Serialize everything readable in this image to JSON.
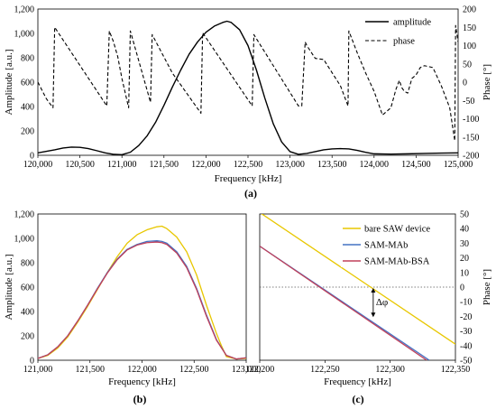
{
  "chart_data": [
    {
      "panel": "(a)",
      "type": "line",
      "xlabel": "Frequency [kHz]",
      "ylabel": "Amplitude [a.u.]",
      "y2label": "Phase [°]",
      "xlim": [
        120000,
        125000
      ],
      "ylim": [
        0,
        1200
      ],
      "y2lim": [
        -200,
        200
      ],
      "x_ticks": [
        "120,000",
        "120,500",
        "121,000",
        "121,500",
        "122,000",
        "122,500",
        "123,000",
        "123,500",
        "124,000",
        "124,500",
        "125,000"
      ],
      "y_ticks": [
        "0",
        "200",
        "400",
        "600",
        "800",
        "1,000",
        "1,200"
      ],
      "y2_ticks": [
        "-200",
        "-150",
        "-100",
        "-50",
        "0",
        "50",
        "100",
        "150",
        "200"
      ],
      "legend": "top-right",
      "series": [
        {
          "name": "amplitude",
          "axis": "left",
          "style": "solid",
          "x": [
            120000,
            120200,
            120300,
            120400,
            120500,
            120600,
            120700,
            120800,
            120900,
            121000,
            121100,
            121200,
            121300,
            121400,
            121500,
            121600,
            121700,
            121800,
            121900,
            122000,
            122100,
            122200,
            122250,
            122300,
            122400,
            122500,
            122600,
            122700,
            122800,
            122900,
            123000,
            123100,
            123200,
            123300,
            123400,
            123500,
            123600,
            123700,
            123800,
            123900,
            124000,
            124200,
            124400,
            124600,
            124800,
            125000
          ],
          "y": [
            20,
            45,
            60,
            67,
            65,
            55,
            38,
            20,
            8,
            5,
            25,
            80,
            160,
            270,
            410,
            560,
            700,
            830,
            930,
            1010,
            1060,
            1090,
            1100,
            1090,
            1030,
            900,
            700,
            470,
            260,
            110,
            30,
            8,
            15,
            30,
            45,
            52,
            55,
            52,
            40,
            25,
            12,
            10,
            12,
            15,
            18,
            20
          ]
        },
        {
          "name": "phase",
          "axis": "right",
          "style": "dashed",
          "x": [
            120000,
            120100,
            120180,
            120200,
            120820,
            120850,
            120900,
            120950,
            121000,
            121050,
            121080,
            121100,
            121340,
            121360,
            121600,
            121940,
            121960,
            122550,
            122570,
            123100,
            123140,
            123180,
            123200,
            123300,
            123400,
            123600,
            123690,
            123700,
            123800,
            123900,
            124000,
            124100,
            124200,
            124260,
            124300,
            124330,
            124360,
            124400,
            124450,
            124500,
            124550,
            124600,
            124700,
            124800,
            124900,
            124960,
            124970,
            125000
          ],
          "y": [
            0,
            -45,
            -70,
            150,
            -65,
            140,
            110,
            70,
            10,
            -40,
            -70,
            140,
            -55,
            130,
            25,
            -85,
            135,
            -65,
            130,
            -65,
            -65,
            110,
            100,
            65,
            62,
            -10,
            -65,
            140,
            80,
            25,
            -25,
            -90,
            -70,
            -20,
            5,
            -15,
            -25,
            -30,
            10,
            20,
            40,
            45,
            40,
            -10,
            -70,
            -160,
            155,
            110
          ]
        }
      ]
    },
    {
      "panel": "(b)",
      "type": "line",
      "xlabel": "Frequency [kHz]",
      "ylabel": "Amplitude [a.u.]",
      "xlim": [
        121000,
        123100
      ],
      "ylim": [
        0,
        1200
      ],
      "x_ticks": [
        "121,000",
        "121,500",
        "122,000",
        "122,500",
        "123,000"
      ],
      "y_ticks": [
        "0",
        "200",
        "400",
        "600",
        "800",
        "1,000",
        "1,200"
      ],
      "series": [
        {
          "name": "bare SAW device",
          "color": "#e8c700",
          "x": [
            121000,
            121100,
            121200,
            121300,
            121400,
            121500,
            121600,
            121700,
            121800,
            121900,
            122000,
            122100,
            122200,
            122250,
            122300,
            122400,
            122500,
            122600,
            122700,
            122800,
            122850,
            122900,
            123000,
            123100
          ],
          "y": [
            15,
            40,
            100,
            190,
            310,
            440,
            580,
            720,
            850,
            960,
            1030,
            1070,
            1095,
            1100,
            1080,
            1010,
            890,
            700,
            450,
            220,
            120,
            30,
            10,
            15
          ]
        },
        {
          "name": "SAM-MAb",
          "color": "#4472c4",
          "x": [
            121000,
            121100,
            121200,
            121300,
            121400,
            121500,
            121600,
            121700,
            121800,
            121900,
            122000,
            122100,
            122200,
            122250,
            122300,
            122400,
            122500,
            122600,
            122700,
            122800,
            122900,
            123000,
            123100
          ],
          "y": [
            15,
            45,
            110,
            200,
            320,
            450,
            590,
            720,
            830,
            910,
            950,
            975,
            980,
            975,
            960,
            890,
            770,
            590,
            370,
            170,
            40,
            10,
            20
          ]
        },
        {
          "name": "SAM-MAb-BSA",
          "color": "#c0405a",
          "x": [
            121000,
            121100,
            121200,
            121300,
            121400,
            121500,
            121600,
            121700,
            121800,
            121900,
            122000,
            122100,
            122200,
            122250,
            122300,
            122400,
            122500,
            122600,
            122700,
            122800,
            122900,
            123000,
            123100
          ],
          "y": [
            15,
            45,
            110,
            200,
            320,
            450,
            585,
            715,
            825,
            905,
            945,
            965,
            970,
            965,
            950,
            880,
            760,
            580,
            360,
            165,
            40,
            10,
            20
          ]
        }
      ]
    },
    {
      "panel": "(c)",
      "type": "line",
      "xlabel": "Frequency [kHz]",
      "ylabel": "Phase [°]",
      "xlim": [
        122200,
        122350
      ],
      "ylim": [
        -50,
        50
      ],
      "x_ticks": [
        "122,200",
        "122,250",
        "122,300",
        "122,350"
      ],
      "y_ticks": [
        "-50",
        "-40",
        "-30",
        "-20",
        "-10",
        "0",
        "10",
        "20",
        "30",
        "40",
        "50"
      ],
      "legend": "top-right",
      "series": [
        {
          "name": "bare SAW device",
          "color": "#e8c700",
          "x": [
            122200,
            122350
          ],
          "y": [
            51,
            -39
          ]
        },
        {
          "name": "SAM-MAb",
          "color": "#4472c4",
          "x": [
            122200,
            122330
          ],
          "y": [
            28,
            -50
          ]
        },
        {
          "name": "SAM-MAb-BSA",
          "color": "#c0405a",
          "x": [
            122200,
            122328
          ],
          "y": [
            28,
            -50
          ]
        }
      ],
      "annotations": {
        "delta_label": "Δφ"
      }
    }
  ],
  "panel_labels": [
    "(a)",
    "(b)",
    "(c)"
  ]
}
